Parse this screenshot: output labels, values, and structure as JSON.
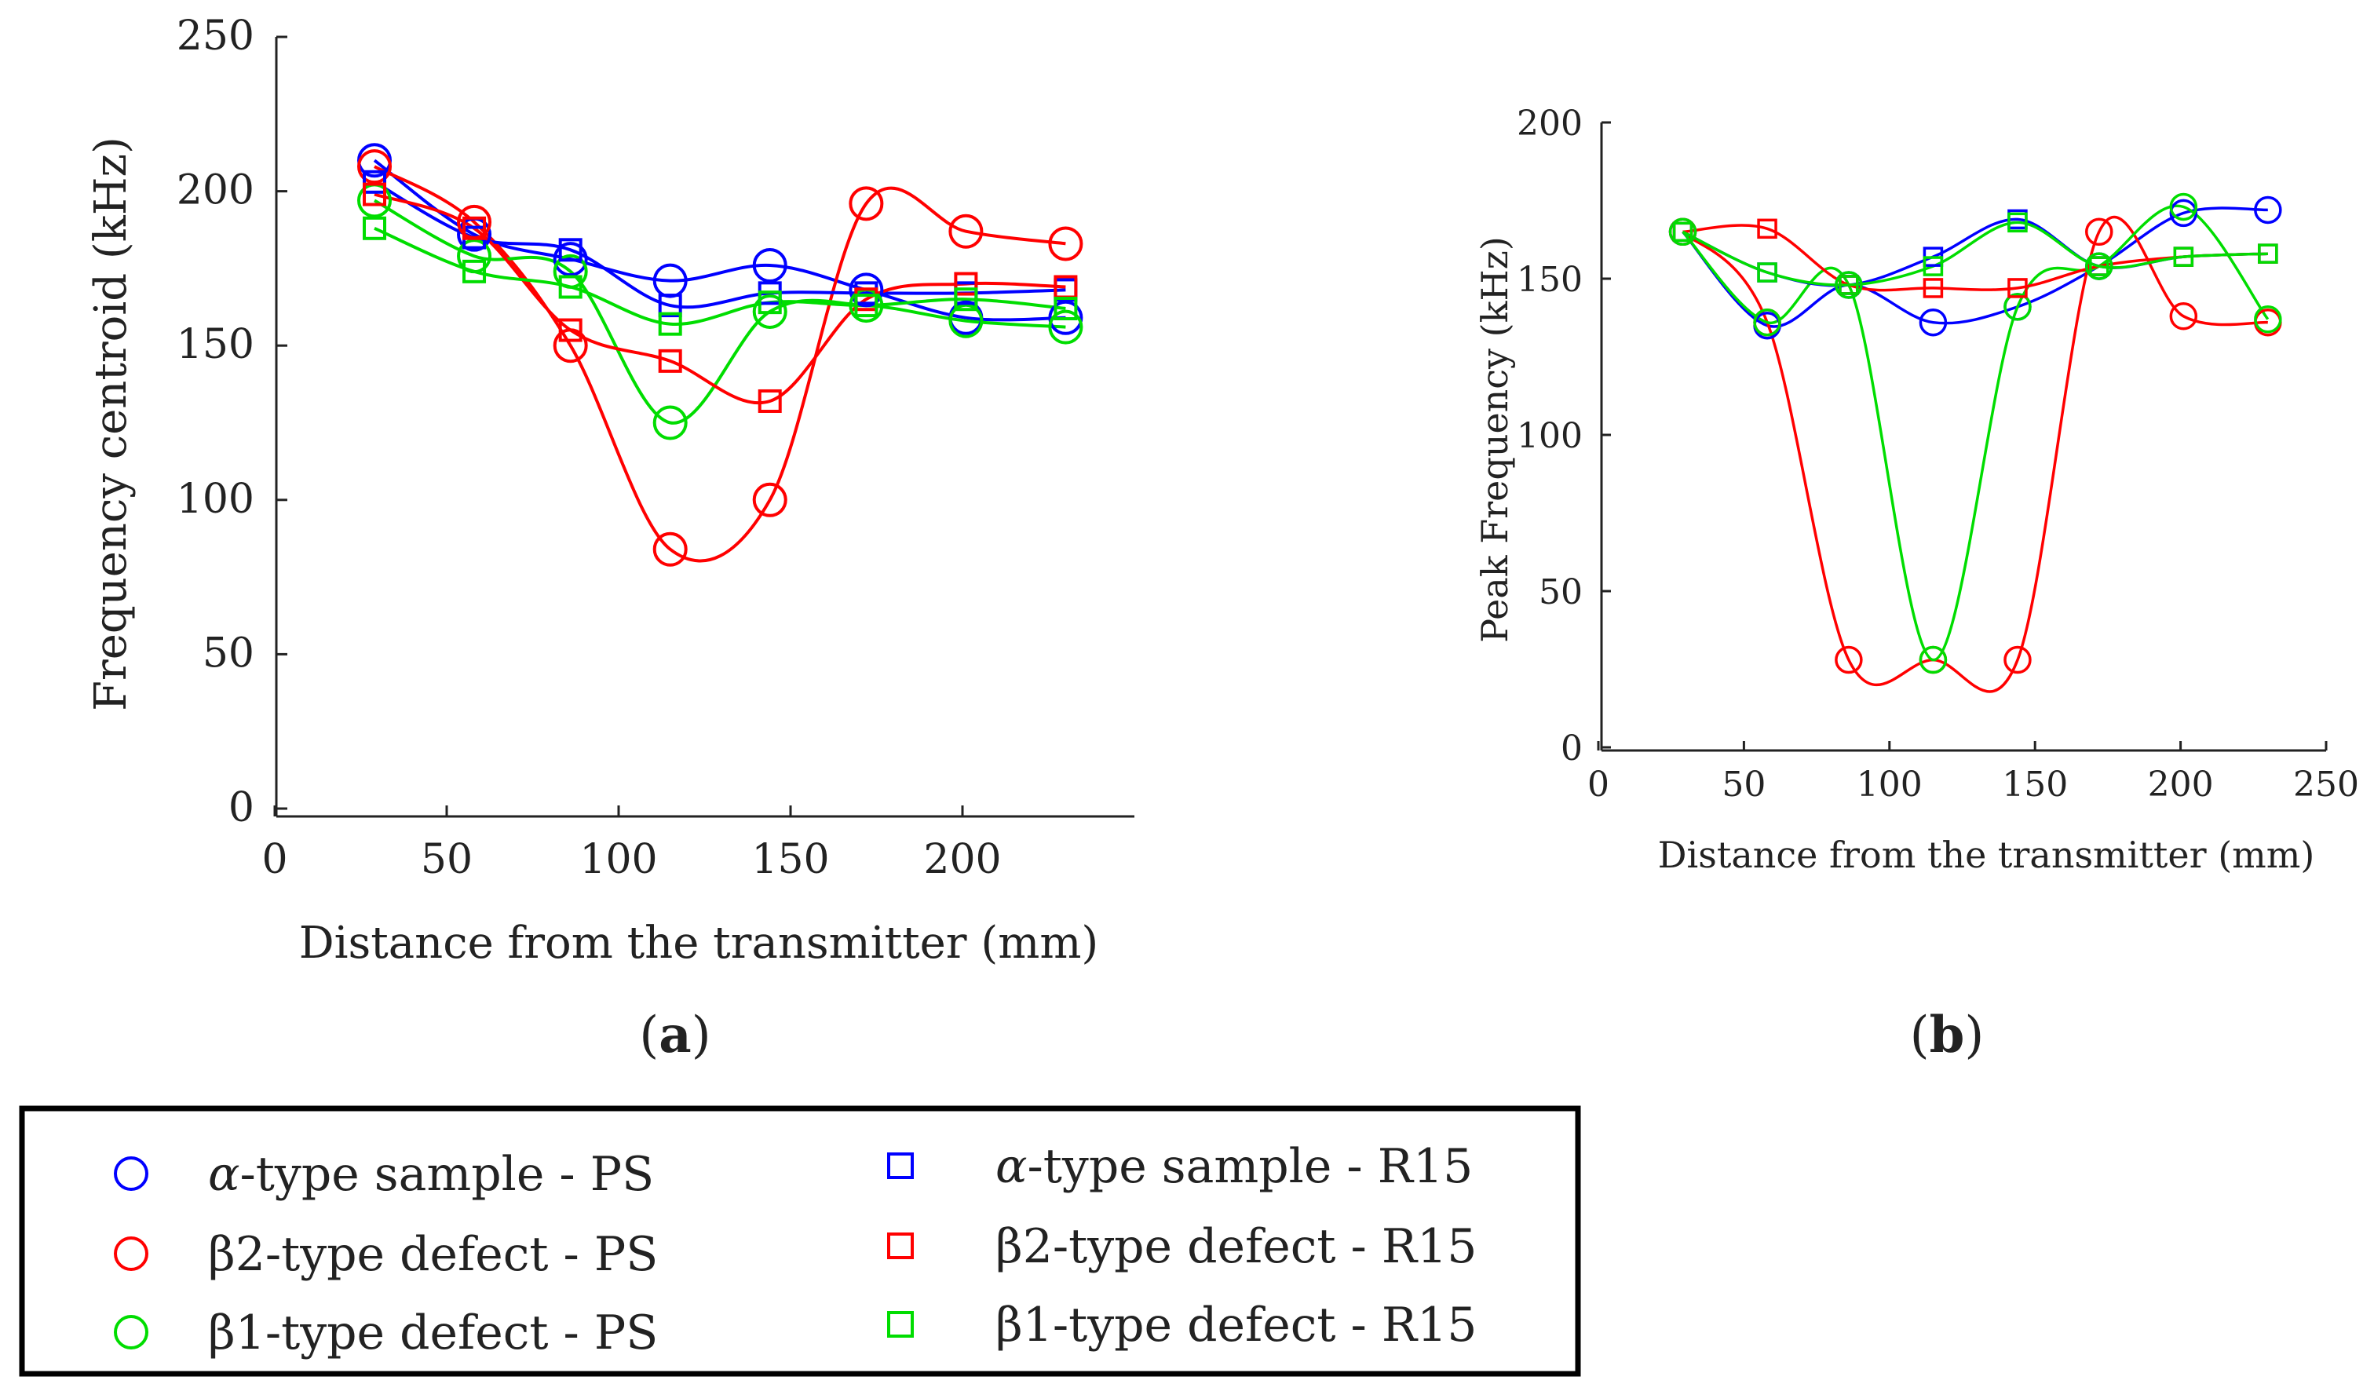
{
  "chart_data": [
    {
      "id": "a",
      "type": "line",
      "panel_label": "a",
      "xlabel": "Distance from the transmitter (mm)",
      "ylabel": "Frequency centroid (kHz)",
      "xlim": [
        0,
        250
      ],
      "ylim": [
        0,
        250
      ],
      "xticks": [
        0,
        50,
        100,
        150,
        200
      ],
      "yticks": [
        0,
        50,
        100,
        150,
        200,
        250
      ],
      "x": [
        29,
        58,
        86,
        115,
        144,
        172,
        201,
        230
      ],
      "series": [
        {
          "name": "α-type sample - PS",
          "key": "alpha-ps",
          "color": "#0000ff",
          "marker": "circle",
          "values": [
            210,
            186,
            178,
            171,
            176,
            168,
            159,
            159
          ]
        },
        {
          "name": "β2-type defect - PS",
          "key": "beta2-ps",
          "color": "#ff0000",
          "marker": "circle",
          "values": [
            208,
            190,
            150,
            84,
            100,
            196,
            187,
            183
          ]
        },
        {
          "name": "β1-type defect - PS",
          "key": "beta1-ps",
          "color": "#00dd00",
          "marker": "circle",
          "values": [
            197,
            179,
            174,
            125,
            161,
            163,
            158,
            156
          ]
        },
        {
          "name": "α-type sample - R15",
          "key": "alpha-r15",
          "color": "#0000ff",
          "marker": "square",
          "values": [
            203,
            185,
            181,
            163,
            167,
            167,
            167,
            168
          ]
        },
        {
          "name": "β2-type defect - R15",
          "key": "beta2-r15",
          "color": "#ff0000",
          "marker": "square",
          "values": [
            199,
            188,
            155,
            145,
            132,
            165,
            170,
            169
          ]
        },
        {
          "name": "β1-type defect - R15",
          "key": "beta1-r15",
          "color": "#00dd00",
          "marker": "square",
          "values": [
            188,
            174,
            169,
            157,
            164,
            163,
            165,
            162
          ]
        }
      ]
    },
    {
      "id": "b",
      "type": "line",
      "panel_label": "b",
      "xlabel": "Distance from the transmitter (mm)",
      "ylabel": "Peak Frequency (kHz)",
      "xlim": [
        0,
        250
      ],
      "ylim": [
        0,
        200
      ],
      "xticks": [
        0,
        50,
        100,
        150,
        200,
        250
      ],
      "yticks": [
        0,
        50,
        100,
        150,
        200
      ],
      "x": [
        29,
        58,
        86,
        115,
        144,
        172,
        201,
        230
      ],
      "series": [
        {
          "name": "α-type sample - PS",
          "key": "alpha-ps",
          "color": "#0000ff",
          "marker": "circle",
          "values": [
            165,
            135,
            148,
            136,
            141,
            154,
            171,
            172
          ]
        },
        {
          "name": "β2-type defect - PS",
          "key": "beta2-ps",
          "color": "#ff0000",
          "marker": "circle",
          "values": [
            165,
            136,
            28,
            28,
            28,
            165,
            138,
            136
          ]
        },
        {
          "name": "β1-type defect - PS",
          "key": "beta1-ps",
          "color": "#00dd00",
          "marker": "circle",
          "values": [
            165,
            136,
            148,
            28,
            141,
            154,
            173,
            137
          ]
        },
        {
          "name": "α-type sample - R15",
          "key": "alpha-r15",
          "color": "#0000ff",
          "marker": "square",
          "values": [
            165,
            152,
            148,
            157,
            169,
            154,
            157,
            158
          ]
        },
        {
          "name": "β2-type defect - R15",
          "key": "beta2-r15",
          "color": "#ff0000",
          "marker": "square",
          "values": [
            165,
            166,
            148,
            147,
            147,
            154,
            157,
            158
          ]
        },
        {
          "name": "β1-type defect - R15",
          "key": "beta1-r15",
          "color": "#00dd00",
          "marker": "square",
          "values": [
            165,
            152,
            148,
            154,
            168,
            154,
            157,
            158
          ]
        }
      ]
    }
  ],
  "legend": {
    "items": [
      {
        "key": "alpha-ps",
        "prefix": "α",
        "suffix": "-type sample - PS",
        "color": "#0000ff",
        "marker": "circle"
      },
      {
        "key": "beta2-ps",
        "prefix": "",
        "suffix": "β2-type defect - PS",
        "color": "#ff0000",
        "marker": "circle"
      },
      {
        "key": "beta1-ps",
        "prefix": "",
        "suffix": "β1-type defect - PS",
        "color": "#00dd00",
        "marker": "circle"
      },
      {
        "key": "alpha-r15",
        "prefix": "α",
        "suffix": "-type sample - R15",
        "color": "#0000ff",
        "marker": "square"
      },
      {
        "key": "beta2-r15",
        "prefix": "",
        "suffix": "β2-type defect - R15",
        "color": "#ff0000",
        "marker": "square"
      },
      {
        "key": "beta1-r15",
        "prefix": "",
        "suffix": "β1-type defect - R15",
        "color": "#00dd00",
        "marker": "square"
      }
    ]
  }
}
